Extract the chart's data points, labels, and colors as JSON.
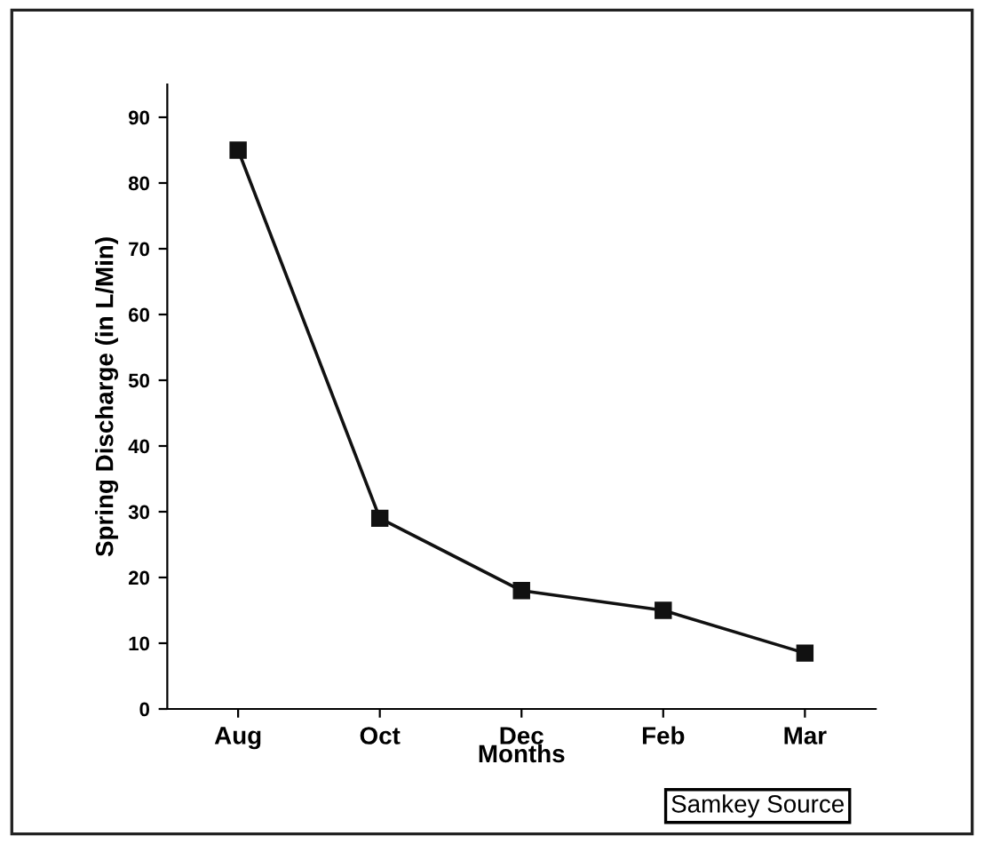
{
  "chart_data": {
    "type": "line",
    "xlabel": "Months",
    "ylabel": "Spring Discharge (in L/Min)",
    "categories": [
      "Aug",
      "Oct",
      "Dec",
      "Feb",
      "Mar"
    ],
    "series": [
      {
        "color": "#111111",
        "values": [
          85,
          29,
          18,
          15,
          8.5
        ]
      }
    ],
    "ylim": [
      0,
      95
    ],
    "yticks": [
      0,
      10,
      20,
      30,
      40,
      50,
      60,
      70,
      80,
      90
    ],
    "marker": "square",
    "line_style": "solid",
    "grid": false,
    "annotations": [
      "Samkey Source"
    ]
  }
}
